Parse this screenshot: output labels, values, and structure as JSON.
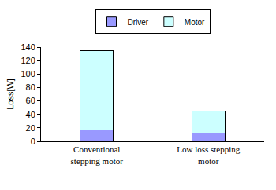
{
  "chart_data": {
    "type": "bar",
    "stacked": true,
    "categories": [
      "Conventional stepping motor",
      "Low loss stepping motor"
    ],
    "series": [
      {
        "name": "Driver",
        "color": "#9999ff",
        "values": [
          17,
          12
        ]
      },
      {
        "name": "Motor",
        "color": "#ccffff",
        "values": [
          118,
          33
        ]
      }
    ],
    "y_label": "Loss[W]",
    "ylim": [
      0,
      140
    ],
    "yticks": [
      0,
      20,
      40,
      60,
      80,
      100,
      120,
      140
    ],
    "grid": false,
    "legend": "top"
  }
}
